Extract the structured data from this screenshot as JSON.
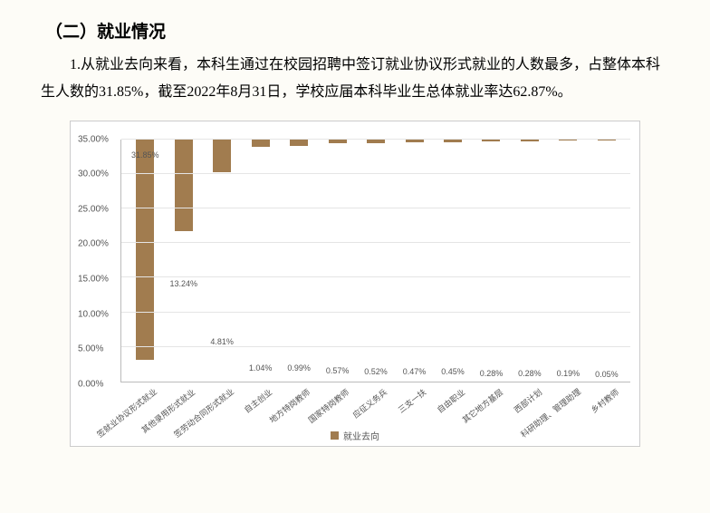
{
  "heading": "（二）就业情况",
  "paragraph": "1.从就业去向来看，本科生通过在校园招聘中签订就业协议形式就业的人数最多，占整体本科生人数的31.85%，截至2022年8月31日，学校应届本科毕业生总体就业率达62.87%。",
  "chart": {
    "type": "bar",
    "bar_color": "#a17c4f",
    "grid_color": "#e5e5e5",
    "axis_color": "#bbbbbb",
    "background_color": "#ffffff",
    "legend_label": "就业去向",
    "ylim_max": 35.0,
    "ytick_step": 5.0,
    "yticks": [
      "0.00%",
      "5.00%",
      "10.00%",
      "15.00%",
      "20.00%",
      "25.00%",
      "30.00%",
      "35.00%"
    ],
    "categories": [
      "签就业协议形式就业",
      "其他录用形式就业",
      "签劳动合同形式就业",
      "自主创业",
      "地方特岗教师",
      "国家特岗教师",
      "应征义务兵",
      "三支一扶",
      "自由职业",
      "其它地方基层",
      "西部计划",
      "科研助理、管理助理",
      "乡村教师"
    ],
    "values": [
      31.85,
      13.24,
      4.81,
      1.04,
      0.99,
      0.57,
      0.52,
      0.47,
      0.45,
      0.28,
      0.28,
      0.19,
      0.05
    ],
    "value_labels": [
      "31.85%",
      "13.24%",
      "4.81%",
      "1.04%",
      "0.99%",
      "0.57%",
      "0.52%",
      "0.47%",
      "0.45%",
      "0.28%",
      "0.28%",
      "0.19%",
      "0.05%"
    ]
  }
}
